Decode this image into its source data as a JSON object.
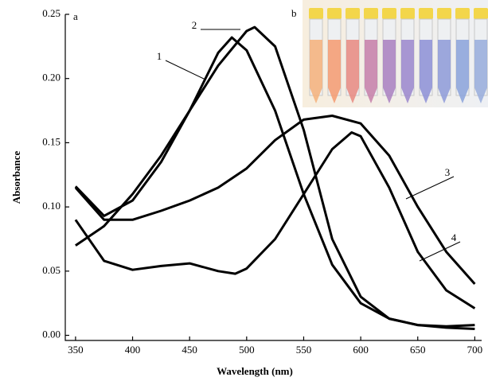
{
  "chart_data": {
    "type": "line",
    "panel_label": "a",
    "inset_label": "b",
    "x_label": "Wavelength (nm)",
    "y_label": "Absorbance",
    "xlim": [
      341,
      706
    ],
    "ylim": [
      -0.004,
      0.25
    ],
    "xticks": [
      350,
      400,
      450,
      500,
      550,
      600,
      650,
      700
    ],
    "yticks": [
      {
        "value": 0,
        "label": "0.00"
      },
      {
        "value": 0.05,
        "label": "0.05"
      },
      {
        "value": 0.1,
        "label": "0.10"
      },
      {
        "value": 0.15,
        "label": "0.15"
      },
      {
        "value": 0.2,
        "label": "0.20"
      },
      {
        "value": 0.25,
        "label": "0.25"
      }
    ],
    "series": [
      {
        "name": "1",
        "color": "#000000",
        "x": [
          350,
          375,
          400,
          425,
          450,
          475,
          487,
          500,
          525,
          550,
          575,
          600,
          625,
          650,
          675,
          700
        ],
        "values": [
          0.116,
          0.093,
          0.105,
          0.135,
          0.175,
          0.22,
          0.232,
          0.222,
          0.175,
          0.11,
          0.055,
          0.025,
          0.013,
          0.008,
          0.007,
          0.008
        ]
      },
      {
        "name": "2",
        "color": "#000000",
        "x": [
          350,
          375,
          400,
          425,
          450,
          475,
          500,
          507,
          525,
          550,
          575,
          600,
          625,
          650,
          675,
          700
        ],
        "values": [
          0.07,
          0.085,
          0.11,
          0.14,
          0.175,
          0.21,
          0.237,
          0.24,
          0.225,
          0.16,
          0.075,
          0.03,
          0.013,
          0.008,
          0.006,
          0.005
        ]
      },
      {
        "name": "3",
        "color": "#000000",
        "x": [
          350,
          375,
          400,
          425,
          450,
          475,
          500,
          525,
          550,
          575,
          600,
          625,
          650,
          675,
          700
        ],
        "values": [
          0.115,
          0.09,
          0.09,
          0.097,
          0.105,
          0.115,
          0.13,
          0.152,
          0.168,
          0.171,
          0.165,
          0.14,
          0.1,
          0.065,
          0.04
        ]
      },
      {
        "name": "4",
        "color": "#000000",
        "x": [
          350,
          375,
          400,
          425,
          450,
          475,
          490,
          500,
          525,
          550,
          575,
          592,
          600,
          625,
          650,
          675,
          700
        ],
        "values": [
          0.09,
          0.058,
          0.051,
          0.054,
          0.056,
          0.05,
          0.048,
          0.052,
          0.075,
          0.11,
          0.145,
          0.158,
          0.155,
          0.115,
          0.065,
          0.035,
          0.021
        ]
      }
    ]
  }
}
